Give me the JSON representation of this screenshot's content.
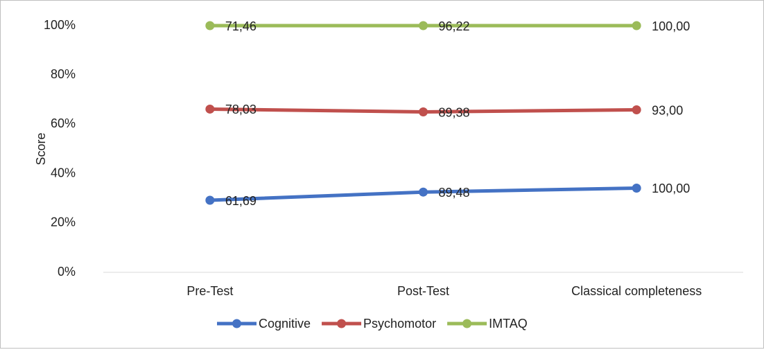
{
  "chart_data": {
    "type": "line",
    "stacked": "percent",
    "axis_label_y": "Score",
    "categories": [
      "Pre-Test",
      "Post-Test",
      "Classical completeness"
    ],
    "series": [
      {
        "name": "Cognitive",
        "color": "#4472c4",
        "values": [
          61.69,
          89.48,
          100
        ],
        "value_labels": [
          "61,69",
          "89,48",
          "100,00"
        ]
      },
      {
        "name": "Psychomotor",
        "color": "#c0504d",
        "values": [
          78.03,
          89.38,
          93
        ],
        "value_labels": [
          "78,03",
          "89,38",
          "93,00"
        ]
      },
      {
        "name": "IMTAQ",
        "color": "#9bbb59",
        "values": [
          71.46,
          96.22,
          100
        ],
        "value_labels": [
          "71,46",
          "96,22",
          "100,00"
        ]
      }
    ],
    "ylim": [
      0,
      100
    ],
    "yticks": [
      {
        "value": 0,
        "label": "0%"
      },
      {
        "value": 20,
        "label": "20%"
      },
      {
        "value": 40,
        "label": "40%"
      },
      {
        "value": 60,
        "label": "60%"
      },
      {
        "value": 80,
        "label": "80%"
      },
      {
        "value": 100,
        "label": "100%"
      }
    ],
    "grid": false,
    "legend": "bottom"
  }
}
